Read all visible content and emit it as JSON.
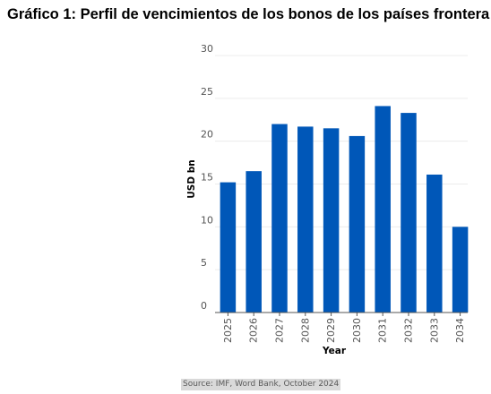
{
  "title": "Gráfico 1: Perfil de vencimientos de los bonos de los países frontera",
  "source": "Source: IMF, Word Bank, October 2024",
  "colors": {
    "bar": "#0057b8",
    "grid": "#ececec",
    "axis": "#555555",
    "tick_text": "#555555",
    "label_text": "#000000"
  },
  "chart_data": {
    "type": "bar",
    "categories": [
      "2025",
      "2026",
      "2027",
      "2028",
      "2029",
      "2030",
      "2031",
      "2032",
      "2033",
      "2034"
    ],
    "series": [
      {
        "values": [
          15.2,
          16.5,
          22.0,
          21.7,
          21.5,
          20.6,
          24.1,
          23.3,
          16.1,
          10.0
        ]
      }
    ],
    "xlabel": "Year",
    "ylabel": "USD bn",
    "ylim": [
      0,
      30
    ],
    "yticks": [
      0,
      5,
      10,
      15,
      20,
      25,
      30
    ],
    "grid": true,
    "legend": "none"
  }
}
